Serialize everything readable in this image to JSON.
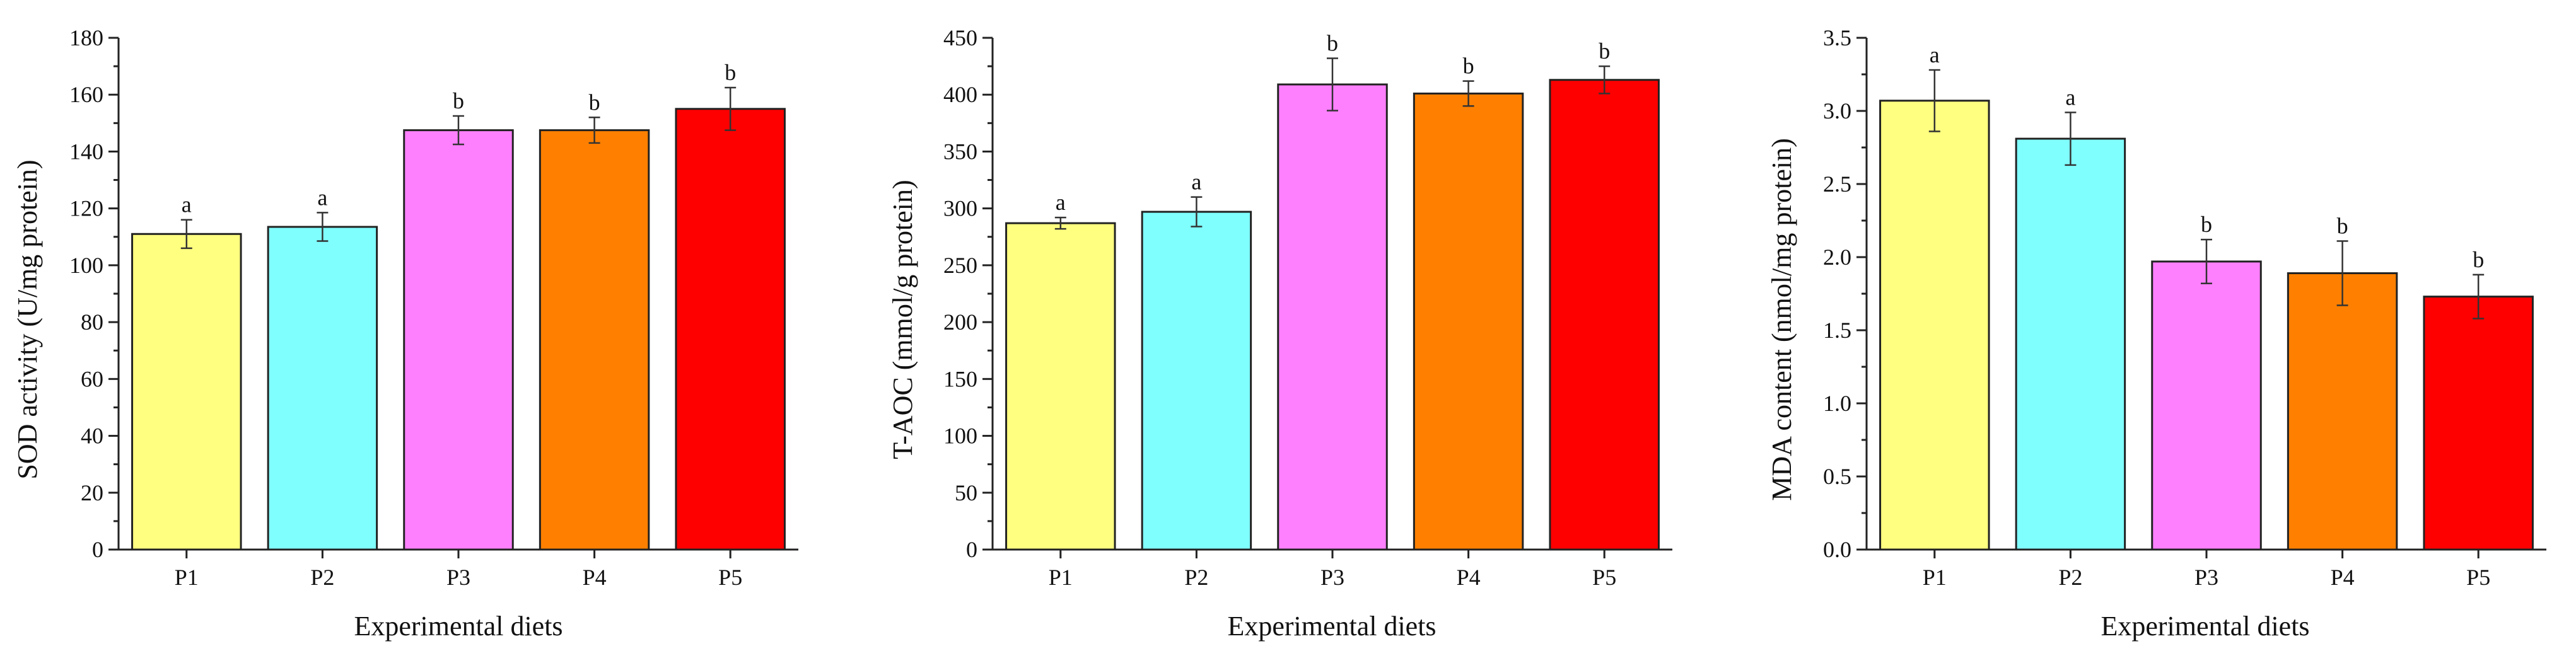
{
  "chart_data": [
    {
      "type": "bar",
      "title": "",
      "categories": [
        "P1",
        "P2",
        "P3",
        "P4",
        "P5"
      ],
      "values": [
        111,
        113.5,
        147.5,
        147.5,
        155
      ],
      "errors": [
        5,
        5,
        5,
        4.5,
        7.5
      ],
      "labels": [
        "a",
        "a",
        "b",
        "b",
        "b"
      ],
      "colors": [
        "#FFFF80",
        "#80FFFF",
        "#FF80FF",
        "#FF8000",
        "#FF0000"
      ],
      "xlabel": "Experimental diets",
      "ylabel": "SOD activity (U/mg protein)",
      "ylim": [
        0,
        180
      ],
      "yticks": [
        0,
        20,
        40,
        60,
        80,
        100,
        120,
        140,
        160,
        180
      ],
      "ytick_labels": [
        "0",
        "20",
        "40",
        "60",
        "80",
        "100",
        "120",
        "140",
        "160",
        "180"
      ],
      "minor_step": 10,
      "grid": false
    },
    {
      "type": "bar",
      "title": "",
      "categories": [
        "P1",
        "P2",
        "P3",
        "P4",
        "P5"
      ],
      "values": [
        287,
        297,
        409,
        401,
        413
      ],
      "errors": [
        5,
        13,
        23,
        11,
        12
      ],
      "labels": [
        "a",
        "a",
        "b",
        "b",
        "b"
      ],
      "colors": [
        "#FFFF80",
        "#80FFFF",
        "#FF80FF",
        "#FF8000",
        "#FF0000"
      ],
      "xlabel": "Experimental diets",
      "ylabel": "T-AOC (mmol/g protein)",
      "ylim": [
        0,
        450
      ],
      "yticks": [
        0,
        50,
        100,
        150,
        200,
        250,
        300,
        350,
        400,
        450
      ],
      "ytick_labels": [
        "0",
        "50",
        "100",
        "150",
        "200",
        "250",
        "300",
        "350",
        "400",
        "450"
      ],
      "minor_step": 25,
      "grid": false
    },
    {
      "type": "bar",
      "title": "",
      "categories": [
        "P1",
        "P2",
        "P3",
        "P4",
        "P5"
      ],
      "values": [
        3.07,
        2.81,
        1.97,
        1.89,
        1.73
      ],
      "errors": [
        0.21,
        0.18,
        0.15,
        0.22,
        0.15
      ],
      "labels": [
        "a",
        "a",
        "b",
        "b",
        "b"
      ],
      "colors": [
        "#FFFF80",
        "#80FFFF",
        "#FF80FF",
        "#FF8000",
        "#FF0000"
      ],
      "xlabel": "Experimental diets",
      "ylabel": "MDA content (nmol/mg protein)",
      "ylim": [
        0,
        3.5
      ],
      "yticks": [
        0,
        0.5,
        1,
        1.5,
        2,
        2.5,
        3,
        3.5
      ],
      "ytick_labels": [
        "0.0",
        "0.5",
        "1.0",
        "1.5",
        "2.0",
        "2.5",
        "3.0",
        "3.5"
      ],
      "minor_step": 0.25,
      "grid": false
    }
  ]
}
